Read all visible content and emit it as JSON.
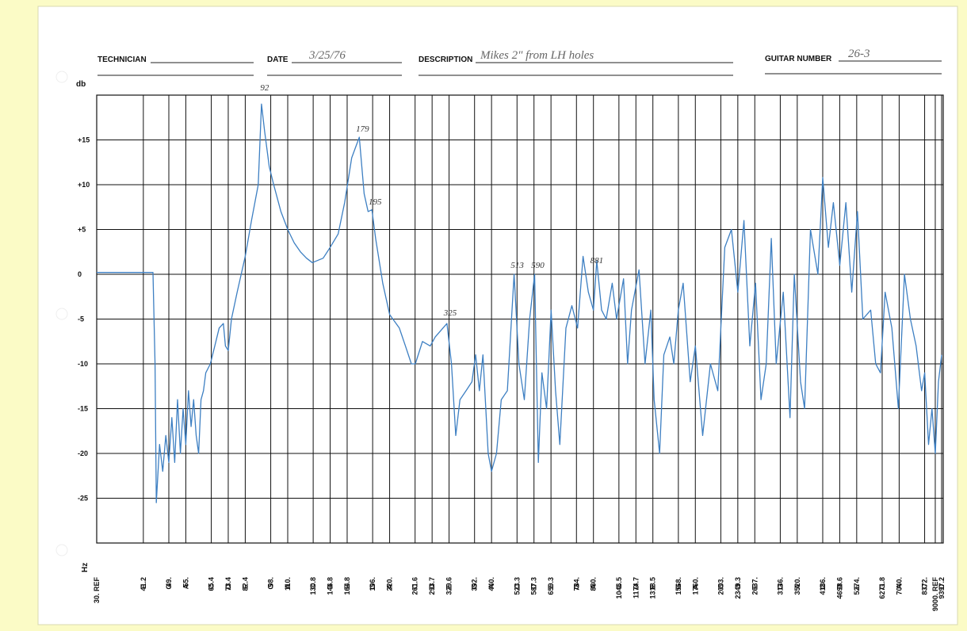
{
  "header": {
    "technician_label": "TECHNICIAN",
    "date_label": "DATE",
    "date": "3/25/76",
    "description_label": "DESCRIPTION",
    "description": "Mikes 2\" from LH holes",
    "guitar_number_label": "GUITAR NUMBER",
    "guitar_number": "26-3"
  },
  "chart_data": {
    "type": "line",
    "ylabel": "db",
    "xlabel": "Hz",
    "log_x": true,
    "grid": true,
    "color": "#3d7fc2",
    "xlim": [
      30,
      9500
    ],
    "ylim": [
      -30,
      20
    ],
    "yticks": [
      {
        "value": 15,
        "label": "+15"
      },
      {
        "value": 10,
        "label": "+10"
      },
      {
        "value": 5,
        "label": "+5"
      },
      0,
      -5,
      -10,
      -15,
      -20,
      -25
    ],
    "xticks": [
      {
        "value": 30,
        "label": "30. REF"
      },
      41.2,
      {
        "value": 49,
        "label": "49."
      },
      {
        "value": 55,
        "label": "55."
      },
      65.4,
      73.4,
      82.4,
      {
        "value": 98,
        "label": "98."
      },
      {
        "value": 110,
        "label": "110."
      },
      130.8,
      146.8,
      164.8,
      {
        "value": 196,
        "label": "196."
      },
      {
        "value": 220,
        "label": "220."
      },
      261.6,
      293.7,
      329.6,
      {
        "value": 392,
        "label": "392."
      },
      {
        "value": 440,
        "label": "440."
      },
      523.3,
      587.3,
      659.3,
      {
        "value": 784,
        "label": "784."
      },
      {
        "value": 880,
        "label": "880."
      },
      1046.5,
      1174.7,
      1318.5,
      {
        "value": 1568,
        "label": "1568."
      },
      {
        "value": 1760,
        "label": "1760."
      },
      {
        "value": 2093,
        "label": "2093."
      },
      2349.3,
      {
        "value": 2637,
        "label": "2637."
      },
      {
        "value": 3136,
        "label": "3136."
      },
      {
        "value": 3520,
        "label": "3520."
      },
      {
        "value": 4186,
        "label": "4186."
      },
      4698.6,
      {
        "value": 5274,
        "label": "5274."
      },
      6271.8,
      {
        "value": 7040,
        "label": "7040."
      },
      {
        "value": 8372,
        "label": "8372."
      },
      {
        "value": 9000,
        "label": "9000. REF"
      },
      9397.2
    ],
    "xtick_notes": [
      null,
      "E",
      "G",
      "A",
      "C",
      "D",
      "E",
      "G",
      "A",
      "C",
      "D",
      "E",
      "G",
      "A",
      "C",
      "D",
      "E",
      "G",
      "A",
      "C",
      "D",
      "E",
      "G",
      "A",
      "C",
      "D",
      "E",
      "G",
      "A",
      "C",
      "D",
      "E",
      "G",
      "A",
      "C",
      "D",
      "E",
      "G",
      "A",
      "C",
      null,
      "D"
    ],
    "annotations": [
      "92",
      "179",
      "195",
      "325",
      "513",
      "590",
      "881"
    ],
    "x": [
      30,
      44,
      44.6,
      45,
      46,
      47,
      48,
      49,
      50,
      51,
      52,
      53,
      54,
      55,
      56,
      57,
      58,
      59,
      60,
      61,
      62,
      63,
      65,
      67,
      69,
      71,
      72,
      73.4,
      75,
      78,
      82.4,
      86,
      90,
      92,
      94,
      97,
      100,
      105,
      110,
      115,
      120,
      125,
      130,
      140,
      146.8,
      155,
      162,
      170,
      179,
      185,
      190,
      195,
      200,
      210,
      220,
      235,
      245,
      255,
      262,
      275,
      290,
      300,
      325,
      335,
      345,
      355,
      370,
      385,
      395,
      405,
      415,
      430,
      440,
      455,
      470,
      490,
      513,
      530,
      550,
      570,
      590,
      605,
      620,
      640,
      660,
      680,
      700,
      730,
      760,
      790,
      820,
      850,
      880,
      900,
      930,
      960,
      1000,
      1030,
      1080,
      1110,
      1140,
      1200,
      1250,
      1300,
      1330,
      1380,
      1420,
      1480,
      1520,
      1568,
      1620,
      1700,
      1760,
      1850,
      1950,
      2050,
      2150,
      2250,
      2350,
      2450,
      2550,
      2650,
      2750,
      2850,
      2950,
      3050,
      3200,
      3350,
      3450,
      3600,
      3700,
      3850,
      4050,
      4186,
      4350,
      4500,
      4700,
      4900,
      5100,
      5300,
      5500,
      5800,
      6000,
      6200,
      6400,
      6700,
      7000,
      7300,
      7600,
      7900,
      8200,
      8372,
      8600,
      8800,
      9000,
      9200,
      9397
    ],
    "values": [
      0.2,
      0.2,
      -10,
      -25.5,
      -19,
      -22,
      -18,
      -21,
      -16,
      -21,
      -14,
      -20,
      -15,
      -19,
      -13,
      -17,
      -14,
      -18,
      -20,
      -14,
      -13,
      -11,
      -10,
      -8,
      -6,
      -5.5,
      -8,
      -8.5,
      -5,
      -2,
      2,
      6,
      10,
      19,
      16,
      12,
      10,
      7,
      5,
      3.5,
      2.5,
      1.8,
      1.3,
      1.8,
      3,
      4.5,
      8,
      13,
      15.3,
      9,
      7,
      7.2,
      4,
      -1,
      -4.5,
      -6,
      -8,
      -10,
      -10,
      -7.5,
      -8,
      -7,
      -5.5,
      -10,
      -18,
      -14,
      -13,
      -12,
      -9,
      -13,
      -9,
      -20,
      -22,
      -20,
      -14,
      -13,
      0,
      -10,
      -14,
      -5,
      0,
      -21,
      -11,
      -15,
      -4,
      -13,
      -19,
      -6,
      -3.5,
      -6,
      2,
      -2,
      -4,
      1.5,
      -4,
      -5,
      -1,
      -5,
      -0.5,
      -10,
      -4,
      0.5,
      -10,
      -4,
      -14,
      -20,
      -9,
      -7,
      -10,
      -4,
      -1,
      -12,
      -8,
      -18,
      -10,
      -13,
      3,
      5,
      -2,
      6,
      -8,
      -1,
      -14,
      -10,
      4,
      -10,
      -2,
      -16,
      0,
      -12,
      -15,
      5,
      0,
      10.8,
      3,
      8,
      1,
      8,
      -2,
      7,
      -5,
      -4,
      -10,
      -11,
      -2,
      -6,
      -15,
      0,
      -5,
      -8,
      -13,
      -11,
      -19,
      -15,
      -20,
      -12,
      -9
    ]
  }
}
